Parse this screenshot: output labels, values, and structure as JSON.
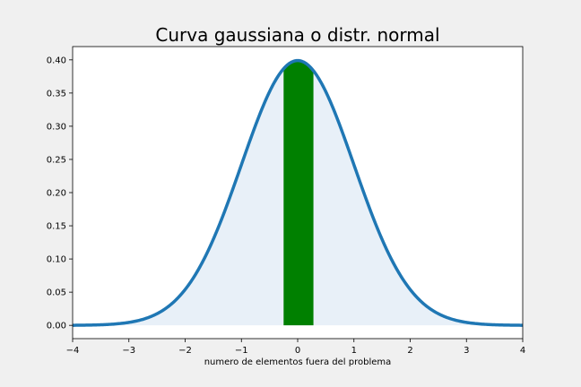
{
  "chart_data": {
    "type": "area",
    "title": "Curva gaussiana o distr. normal",
    "xlabel": "numero de elementos fuera del problema",
    "ylabel": "",
    "xlim": [
      -4,
      4
    ],
    "ylim": [
      -0.02,
      0.42
    ],
    "x_ticks": [
      -4,
      -3,
      -2,
      -1,
      0,
      1,
      2,
      3,
      4
    ],
    "x_tick_labels": [
      "−4",
      "−3",
      "−2",
      "−1",
      "0",
      "1",
      "2",
      "3",
      "4"
    ],
    "y_ticks": [
      0.0,
      0.05,
      0.1,
      0.15,
      0.2,
      0.25,
      0.3,
      0.35,
      0.4
    ],
    "y_tick_labels": [
      "0.00",
      "0.05",
      "0.10",
      "0.15",
      "0.20",
      "0.25",
      "0.30",
      "0.35",
      "0.40"
    ],
    "grid": false,
    "series": [
      {
        "type": "line",
        "function": "normal_pdf",
        "mean": 0,
        "std": 1,
        "x_range": [
          -4,
          4
        ],
        "color": "#1f77b4"
      }
    ],
    "fill": {
      "x_range": [
        -4,
        4
      ],
      "to": 0,
      "color": "#e8f0f8"
    },
    "highlight": {
      "x_range": [
        -0.25,
        0.28
      ],
      "to": 0,
      "color": "#008000"
    }
  }
}
